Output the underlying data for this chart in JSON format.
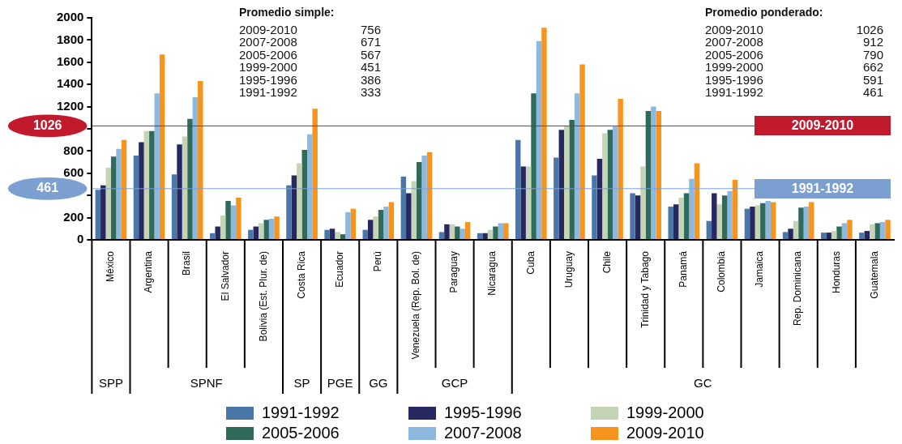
{
  "chart_data": {
    "type": "bar",
    "categories": [
      "México",
      "Argentina",
      "Brasil",
      "El Salvador",
      "Bolivia (Est. Plur. de)",
      "Costa Rica",
      "Ecuador",
      "Perú",
      "Venezuela (Rep. Bol. de)",
      "Paraguay",
      "Nicaragua",
      "Cuba",
      "Uruguay",
      "Chile",
      "Trinidad y Tabago",
      "Panamá",
      "Colombia",
      "Jamaica",
      "Rep. Dominicana",
      "Honduras",
      "Guatemala"
    ],
    "series": [
      {
        "name": "1991-1992",
        "color": "#4a76a8",
        "values": [
          450,
          760,
          590,
          60,
          90,
          490,
          90,
          90,
          570,
          70,
          60,
          900,
          740,
          580,
          420,
          300,
          170,
          280,
          70,
          65,
          65
        ]
      },
      {
        "name": "1995-1996",
        "color": "#27285f",
        "values": [
          490,
          880,
          860,
          120,
          120,
          580,
          100,
          180,
          420,
          140,
          60,
          660,
          990,
          730,
          400,
          320,
          420,
          300,
          100,
          65,
          80
        ]
      },
      {
        "name": "1999-2000",
        "color": "#c5d4b5",
        "values": [
          650,
          980,
          930,
          220,
          150,
          690,
          70,
          210,
          530,
          140,
          90,
          660,
          1030,
          960,
          660,
          380,
          320,
          310,
          170,
          80,
          140
        ]
      },
      {
        "name": "2005-2006",
        "color": "#2f6a5a",
        "values": [
          750,
          980,
          1090,
          350,
          180,
          810,
          50,
          270,
          700,
          120,
          120,
          1320,
          1080,
          990,
          1160,
          420,
          400,
          330,
          290,
          120,
          150
        ]
      },
      {
        "name": "2007-2008",
        "color": "#8db9e0",
        "values": [
          820,
          1320,
          1285,
          310,
          190,
          950,
          250,
          300,
          760,
          100,
          150,
          1790,
          1320,
          1020,
          1200,
          550,
          440,
          350,
          300,
          150,
          160
        ]
      },
      {
        "name": "2009-2010",
        "color": "#f7941d",
        "values": [
          900,
          1670,
          1430,
          380,
          210,
          1180,
          280,
          340,
          790,
          160,
          150,
          1910,
          1580,
          1270,
          1160,
          690,
          540,
          340,
          340,
          180,
          180
        ]
      }
    ],
    "ylim": [
      0,
      2000
    ],
    "yticks": [
      0,
      200,
      {
        "value": 400,
        "label": null
      },
      600,
      800,
      {
        "value": 1000,
        "label": null
      },
      1200,
      1400,
      1600,
      1800,
      2000
    ],
    "ref_lines": [
      {
        "axis": "y",
        "value": 1026,
        "label": "1026",
        "color": "#c01a2c"
      },
      {
        "axis": "y",
        "value": 461,
        "label": "461",
        "color": "#7b9fd0"
      }
    ],
    "annotations": [
      "Promedio simple:\n2009-2010\t756\n2007-2008\t671\n2005-2006\t567\n1999-2000\t451\n1995-1996\t386\n1991-1992\t333",
      "Promedio ponderado:\n2009-2010\t1026\n2007-2008\t912\n2005-2006\t790\n1999-2000\t662\n1995-1996\t591\n1991-1992\t461",
      "2009-2010",
      "1991-1992",
      "SPP",
      "SPNF",
      "SP",
      "PGE",
      "GG",
      "GCP",
      "GC"
    ],
    "legend": "bottom"
  }
}
